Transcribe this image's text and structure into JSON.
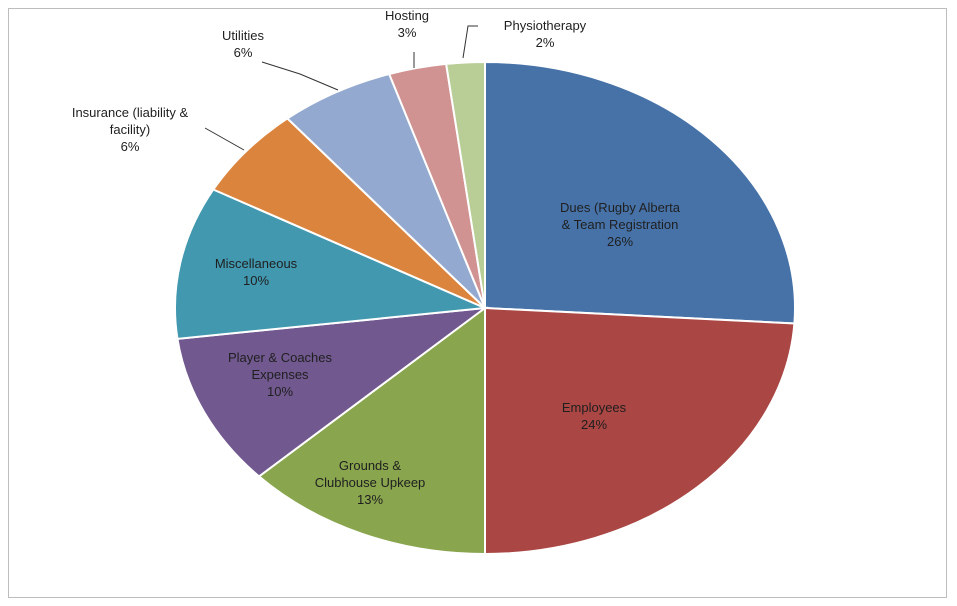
{
  "chart_data": {
    "type": "pie",
    "title": "",
    "slices": [
      {
        "label": [
          "Dues (Rugby Alberta",
          "& Team Registration"
        ],
        "pct_label": "26%",
        "value": 26,
        "color": "#4672a8"
      },
      {
        "label": [
          "Employees"
        ],
        "pct_label": "24%",
        "value": 24,
        "color": "#aa4643"
      },
      {
        "label": [
          "Grounds &",
          "Clubhouse Upkeep"
        ],
        "pct_label": "13%",
        "value": 13,
        "color": "#89a54e"
      },
      {
        "label": [
          "Player & Coaches",
          "Expenses"
        ],
        "pct_label": "10%",
        "value": 10,
        "color": "#71588f"
      },
      {
        "label": [
          "Miscellaneous"
        ],
        "pct_label": "10%",
        "value": 10,
        "color": "#4198af"
      },
      {
        "label": [
          "Insurance (liability &",
          "facility)"
        ],
        "pct_label": "6%",
        "value": 6,
        "color": "#db843d"
      },
      {
        "label": [
          "Utilities"
        ],
        "pct_label": "6%",
        "value": 6,
        "color": "#93a9cf"
      },
      {
        "label": [
          "Hosting"
        ],
        "pct_label": "3%",
        "value": 3,
        "color": "#d19392"
      },
      {
        "label": [
          "Physiotherapy"
        ],
        "pct_label": "2%",
        "value": 2,
        "color": "#b9cd96"
      }
    ],
    "legend": "none"
  }
}
